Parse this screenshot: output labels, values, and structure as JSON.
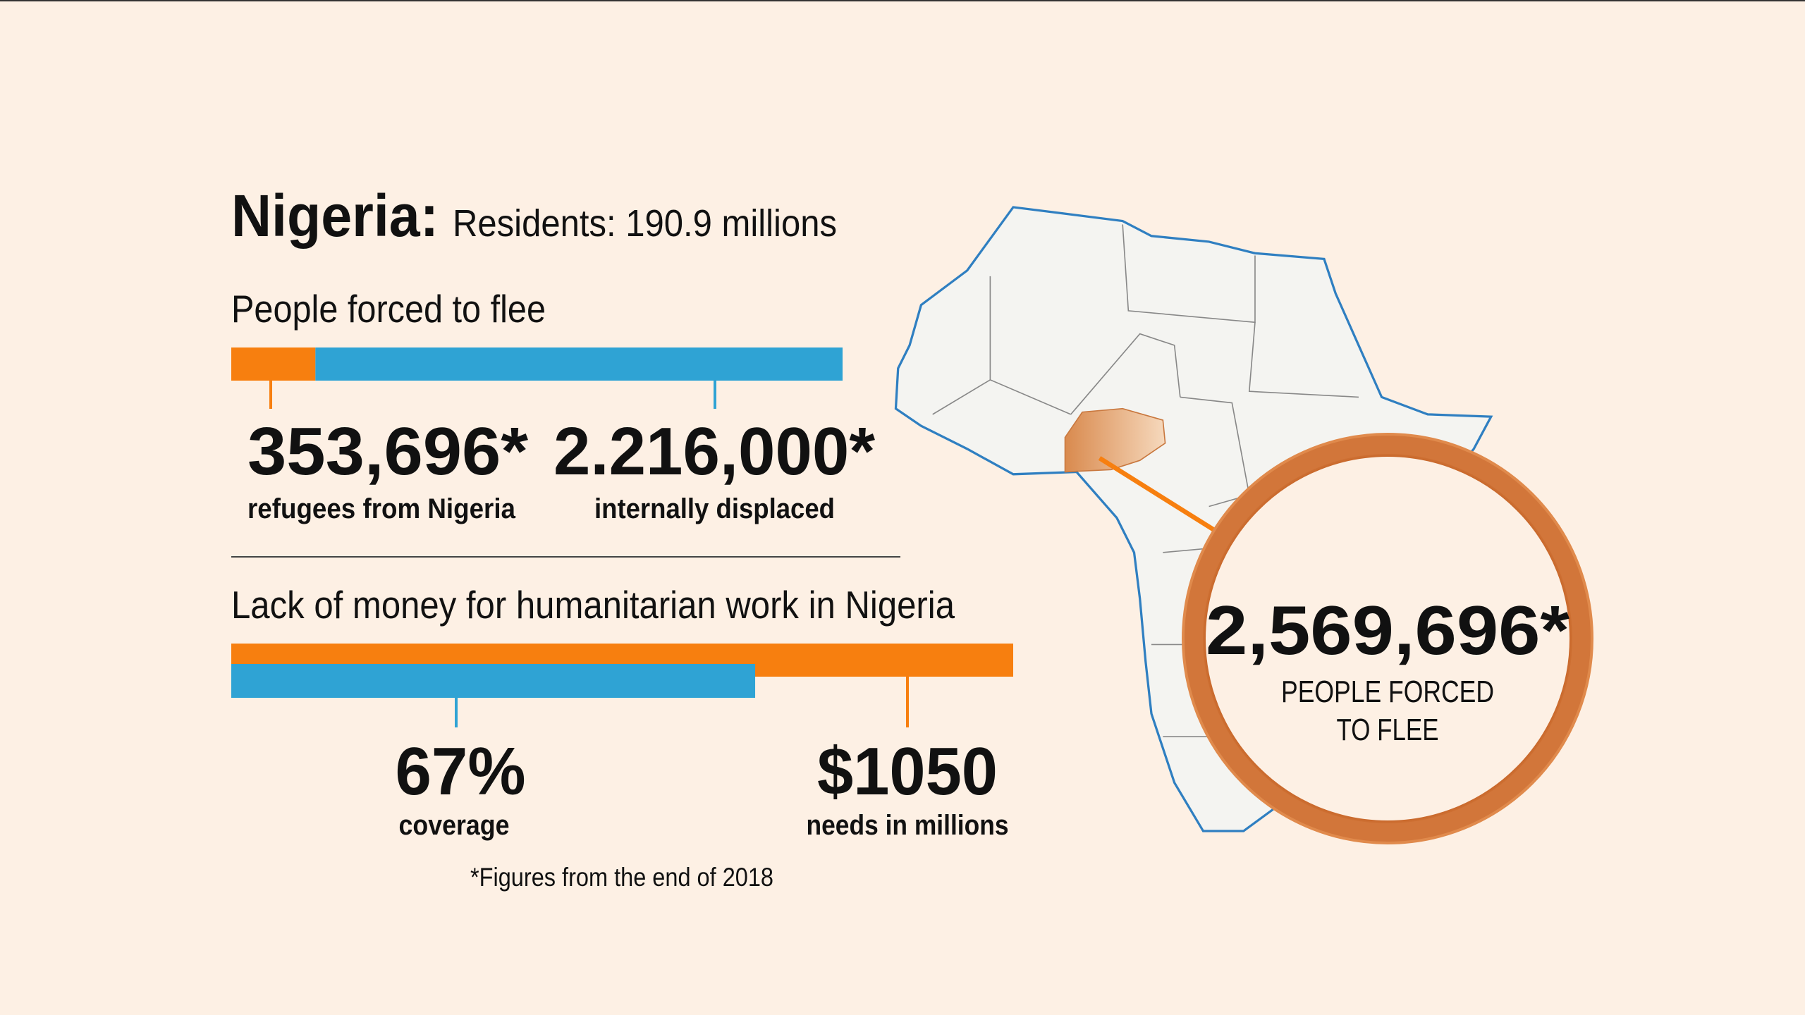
{
  "header": {
    "title": "Nigeria:",
    "subtitle": "Residents: 190.9 millions"
  },
  "flee": {
    "heading": "People forced to flee",
    "items": [
      {
        "value": 353696,
        "label": "353,696*",
        "caption": "refugees from Nigeria",
        "color": "#f77f0f"
      },
      {
        "value": 2216000,
        "label": "2.216,000*",
        "caption": "internally displaced",
        "color": "#2fa3d4"
      }
    ]
  },
  "funding": {
    "heading": "Lack of money for humanitarian work in Nigeria",
    "coverage": {
      "value": 67,
      "label": "67%",
      "caption": "coverage",
      "color": "#2fa3d4"
    },
    "needs": {
      "value": 1050,
      "label": "$1050",
      "caption": "needs in millions",
      "color": "#f77f0f"
    }
  },
  "footnote": "*Figures from the end of 2018",
  "callout": {
    "label": "2,569,696*",
    "caption_lines": [
      "PEOPLE FORCED",
      "TO FLEE"
    ]
  }
}
